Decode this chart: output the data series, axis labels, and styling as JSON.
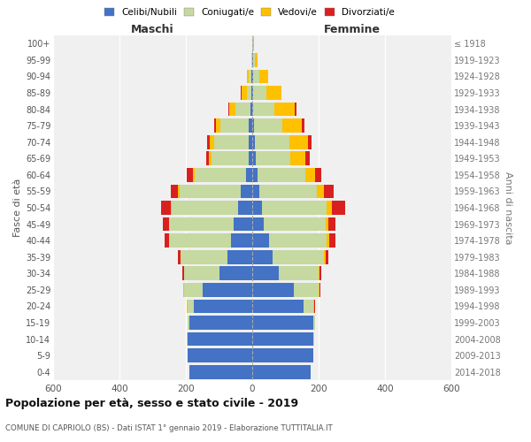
{
  "age_groups": [
    "0-4",
    "5-9",
    "10-14",
    "15-19",
    "20-24",
    "25-29",
    "30-34",
    "35-39",
    "40-44",
    "45-49",
    "50-54",
    "55-59",
    "60-64",
    "65-69",
    "70-74",
    "75-79",
    "80-84",
    "85-89",
    "90-94",
    "95-99",
    "100+"
  ],
  "birth_years": [
    "2014-2018",
    "2009-2013",
    "2004-2008",
    "1999-2003",
    "1994-1998",
    "1989-1993",
    "1984-1988",
    "1979-1983",
    "1974-1978",
    "1969-1973",
    "1964-1968",
    "1959-1963",
    "1954-1958",
    "1949-1953",
    "1944-1948",
    "1939-1943",
    "1934-1938",
    "1929-1933",
    "1924-1928",
    "1919-1923",
    "≤ 1918"
  ],
  "male": {
    "celibe": [
      190,
      195,
      195,
      190,
      175,
      150,
      100,
      75,
      65,
      55,
      42,
      35,
      18,
      12,
      10,
      10,
      5,
      2,
      2,
      0,
      0
    ],
    "coniugato": [
      0,
      0,
      2,
      5,
      20,
      55,
      105,
      140,
      185,
      195,
      200,
      185,
      155,
      110,
      105,
      85,
      45,
      15,
      8,
      2,
      0
    ],
    "vedovo": [
      0,
      0,
      0,
      0,
      2,
      2,
      0,
      0,
      1,
      2,
      3,
      5,
      5,
      8,
      12,
      15,
      20,
      15,
      5,
      2,
      0
    ],
    "divorziato": [
      0,
      0,
      0,
      0,
      0,
      2,
      5,
      8,
      12,
      18,
      30,
      20,
      20,
      10,
      8,
      5,
      2,
      2,
      0,
      0,
      0
    ]
  },
  "female": {
    "nubile": [
      175,
      185,
      185,
      185,
      155,
      125,
      80,
      60,
      50,
      35,
      30,
      20,
      15,
      10,
      8,
      5,
      2,
      2,
      2,
      2,
      0
    ],
    "coniugata": [
      0,
      0,
      2,
      5,
      30,
      75,
      120,
      155,
      175,
      185,
      195,
      175,
      145,
      105,
      105,
      85,
      65,
      40,
      20,
      5,
      2
    ],
    "vedova": [
      0,
      0,
      0,
      0,
      2,
      2,
      2,
      5,
      8,
      10,
      15,
      20,
      30,
      45,
      55,
      60,
      60,
      45,
      25,
      8,
      2
    ],
    "divorziata": [
      0,
      0,
      0,
      0,
      2,
      2,
      5,
      8,
      18,
      20,
      40,
      30,
      18,
      12,
      10,
      8,
      5,
      2,
      0,
      0,
      0
    ]
  },
  "colors": {
    "celibe": "#4472c4",
    "coniugato": "#c5d9a0",
    "vedovo": "#ffc000",
    "divorziato": "#d92020"
  },
  "legend_labels": [
    "Celibi/Nubili",
    "Coniugati/e",
    "Vedovi/e",
    "Divorziati/e"
  ],
  "title": "Popolazione per età, sesso e stato civile - 2019",
  "subtitle": "COMUNE DI CAPRIOLO (BS) - Dati ISTAT 1° gennaio 2019 - Elaborazione TUTTITALIA.IT",
  "xlabel_left": "Maschi",
  "xlabel_right": "Femmine",
  "ylabel_left": "Fasce di età",
  "ylabel_right": "Anni di nascita",
  "xlim": 600,
  "background_color": "#f0f0f0"
}
